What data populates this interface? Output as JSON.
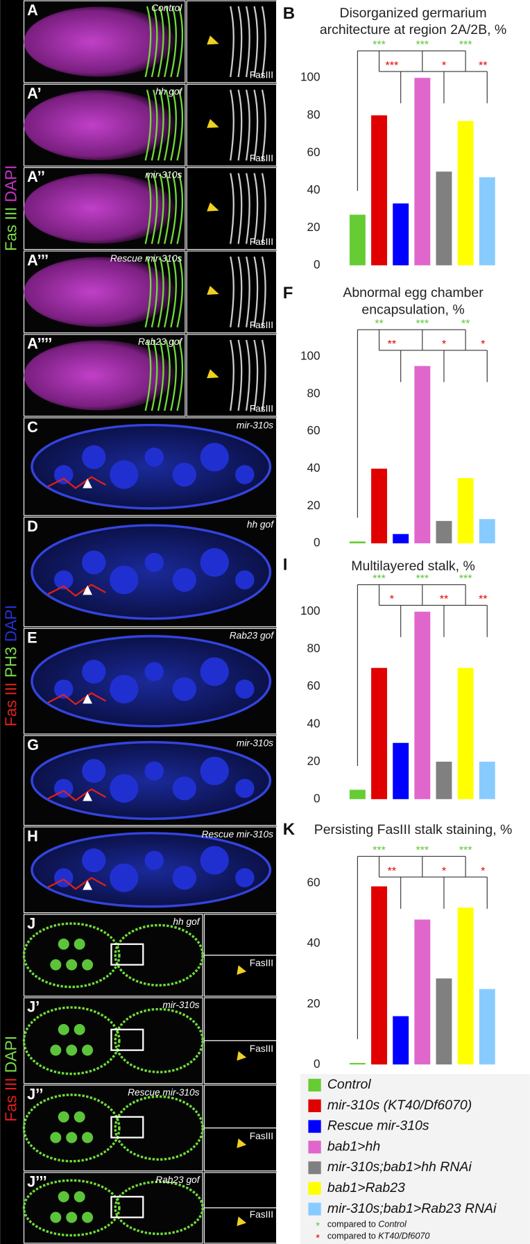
{
  "panels": [
    {
      "letter": "A",
      "condition": "Control",
      "inset_label": "FasIII"
    },
    {
      "letter": "A’",
      "condition": "hh gof",
      "inset_label": "FasIII"
    },
    {
      "letter": "A’’",
      "condition": "mir-310s",
      "inset_label": "FasIII"
    },
    {
      "letter": "A’’’",
      "condition": "Rescue mir-310s",
      "inset_label": "FasIII"
    },
    {
      "letter": "A’’’’",
      "condition": "Rab23 gof",
      "inset_label": "FasIII"
    },
    {
      "letter": "C",
      "condition": "mir-310s"
    },
    {
      "letter": "D",
      "condition": "hh gof"
    },
    {
      "letter": "E",
      "condition": "Rab23 gof"
    },
    {
      "letter": "G",
      "condition": "mir-310s"
    },
    {
      "letter": "H",
      "condition": "Rescue mir-310s"
    },
    {
      "letter": "J",
      "condition": "hh gof",
      "inset_label": "FasIII"
    },
    {
      "letter": "J’",
      "condition": "mir-310s",
      "inset_label": "FasIII"
    },
    {
      "letter": "J’’",
      "condition": "Rescue mir-310s",
      "inset_label": "FasIII"
    },
    {
      "letter": "J’’’",
      "condition": "Rab23 gof",
      "inset_label": "FasIII"
    }
  ],
  "sidebars": [
    [
      {
        "text": "Fas III",
        "color": "#7ddc4a"
      },
      {
        "text": "DAPI",
        "color": "#cc33cc"
      }
    ],
    [
      {
        "text": "Fas III",
        "color": "#e0201a"
      },
      {
        "text": "PH3",
        "color": "#7ddc4a"
      },
      {
        "text": "DAPI",
        "color": "#2233dd"
      }
    ],
    [
      {
        "text": "Fas III",
        "color": "#e0201a"
      },
      {
        "text": "DAPI",
        "color": "#7ddc4a"
      }
    ]
  ],
  "chart_data": [
    {
      "type": "bar",
      "panel_letter": "B",
      "title": "Disorganized germarium architecture at region 2A/2B, %",
      "categories": [
        null,
        null,
        null,
        null,
        null,
        null,
        null
      ],
      "values": [
        27,
        80,
        33,
        100,
        50,
        77,
        47
      ],
      "ylim": [
        0,
        100
      ],
      "yticks": [
        0,
        20,
        40,
        60,
        80,
        100
      ],
      "significance": [
        {
          "color": "#5cc43a",
          "labels": [
            "***",
            "***",
            "***"
          ]
        },
        {
          "color": "#e00000",
          "labels": [
            "***",
            "*",
            "**"
          ]
        }
      ]
    },
    {
      "type": "bar",
      "panel_letter": "F",
      "title": "Abnormal egg chamber encapsulation, %",
      "categories": [
        null,
        null,
        null,
        null,
        null,
        null,
        null
      ],
      "values": [
        1,
        40,
        5,
        95,
        12,
        35,
        13
      ],
      "ylim": [
        0,
        100
      ],
      "yticks": [
        0,
        20,
        40,
        60,
        80,
        100
      ],
      "significance": [
        {
          "color": "#5cc43a",
          "labels": [
            "**",
            "***",
            "**"
          ]
        },
        {
          "color": "#e00000",
          "labels": [
            "**",
            "*",
            "*"
          ]
        }
      ]
    },
    {
      "type": "bar",
      "panel_letter": "I",
      "title": "Multilayered stalk, %",
      "categories": [
        null,
        null,
        null,
        null,
        null,
        null,
        null
      ],
      "values": [
        5,
        70,
        30,
        100,
        20,
        70,
        20
      ],
      "ylim": [
        0,
        100
      ],
      "yticks": [
        0,
        20,
        40,
        60,
        80,
        100
      ],
      "significance": [
        {
          "color": "#5cc43a",
          "labels": [
            "***",
            "***",
            "***"
          ]
        },
        {
          "color": "#e00000",
          "labels": [
            "*",
            "**",
            "**"
          ]
        }
      ]
    },
    {
      "type": "bar",
      "panel_letter": "K",
      "title": "Persisting FasIII stalk staining, %",
      "categories": [
        null,
        null,
        null,
        null,
        null,
        null,
        null
      ],
      "values": [
        0.5,
        59,
        16,
        48,
        28.5,
        52,
        25
      ],
      "ylim": [
        0,
        60
      ],
      "yticks": [
        0,
        20,
        40,
        60
      ],
      "significance": [
        {
          "color": "#5cc43a",
          "labels": [
            "***",
            "***",
            "***"
          ]
        },
        {
          "color": "#e00000",
          "labels": [
            "**",
            "*",
            "*"
          ]
        }
      ]
    }
  ],
  "legend": {
    "items": [
      {
        "name": "Control",
        "color": "#66cc33"
      },
      {
        "name": "mir-310s (KT40/Df6070)",
        "color": "#e00000"
      },
      {
        "name": "Rescue mir-310s",
        "color": "#0000ff"
      },
      {
        "name": "bab1>hh",
        "color": "#e066cc"
      },
      {
        "name": "mir-310s;bab1>hh RNAi",
        "color": "#808080"
      },
      {
        "name": "bab1>Rab23",
        "color": "#ffff00"
      },
      {
        "name": "mir-310s;bab1>Rab23 RNAi",
        "color": "#88ccff"
      }
    ],
    "notes": [
      {
        "symbol": "*",
        "color": "#5cc43a",
        "text": "compared to",
        "reference": "Control"
      },
      {
        "symbol": "*",
        "color": "#e00000",
        "text": "compared to",
        "reference": "KT40/Df6070"
      }
    ]
  }
}
